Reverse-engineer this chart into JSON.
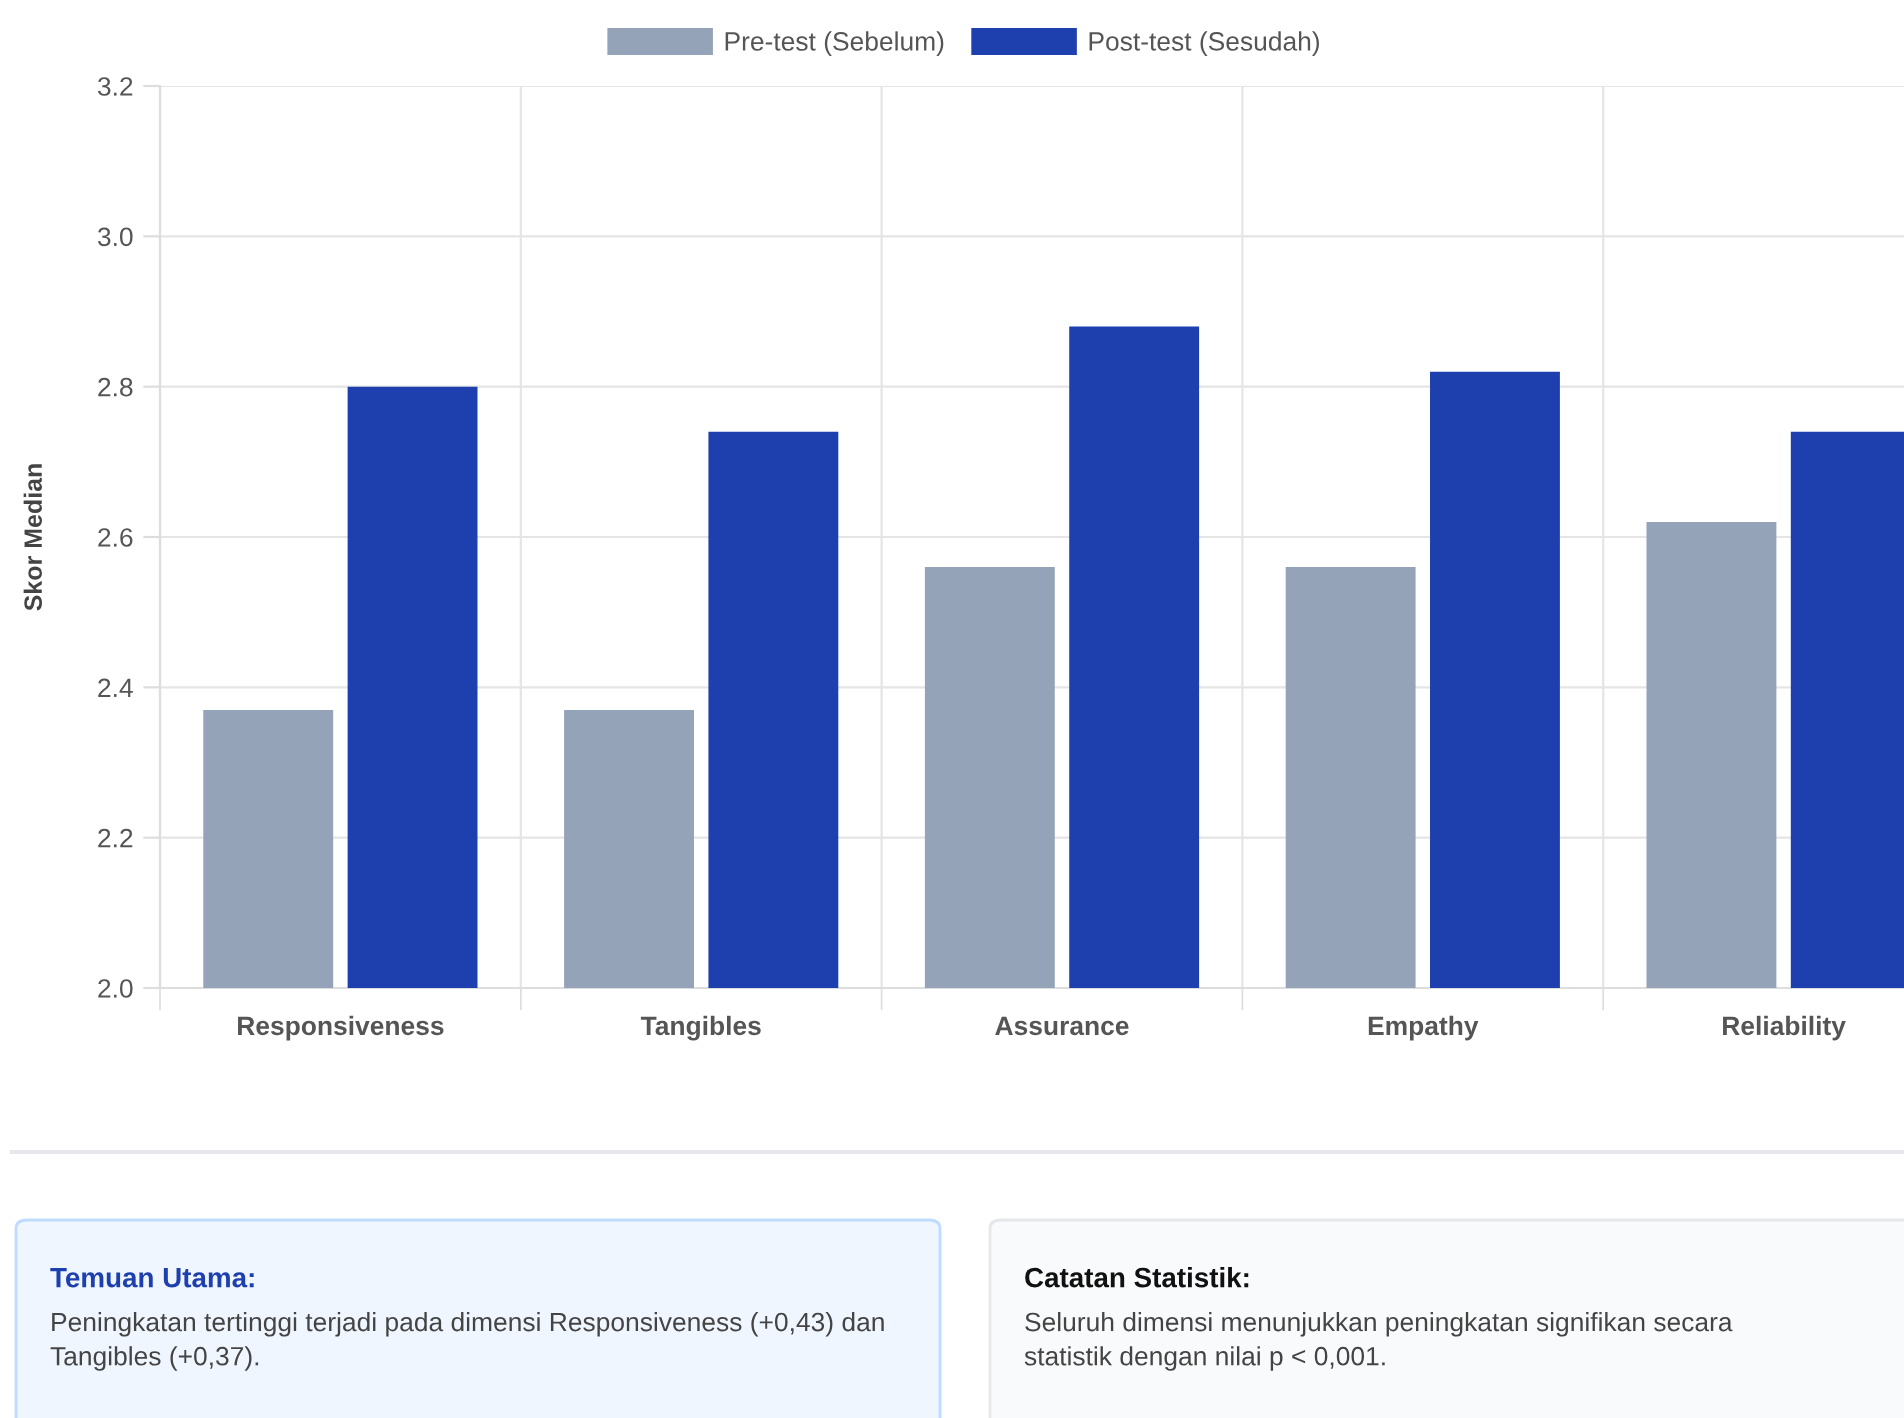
{
  "chart_data": {
    "type": "bar",
    "ylabel": "Skor Median",
    "categories": [
      "Responsiveness",
      "Tangibles",
      "Assurance",
      "Empathy",
      "Reliability"
    ],
    "series": [
      {
        "name": "Pre-test (Sebelum)",
        "color": "#94a3b8",
        "values": [
          2.37,
          2.37,
          2.56,
          2.56,
          2.62
        ]
      },
      {
        "name": "Post-test (Sesudah)",
        "color": "#1e40af",
        "values": [
          2.8,
          2.74,
          2.88,
          2.82,
          2.74
        ]
      }
    ],
    "ylim": [
      2.0,
      3.2
    ],
    "yticks": [
      {
        "value": 2.0,
        "label": "2.0"
      },
      2.2,
      2.4,
      2.6,
      2.8,
      {
        "value": 3.0,
        "label": "3.0"
      },
      3.2
    ],
    "grid": true,
    "legend": "top",
    "annotations": [
      "Temuan Utama:",
      "Peningkatan tertinggi terjadi pada dimensi Responsiveness (+0,43) dan Tangibles (+0,37).",
      "Catatan Statistik:",
      "Seluruh dimensi menunjukkan peningkatan signifikan secara statistik dengan nilai p < 0,001."
    ]
  }
}
